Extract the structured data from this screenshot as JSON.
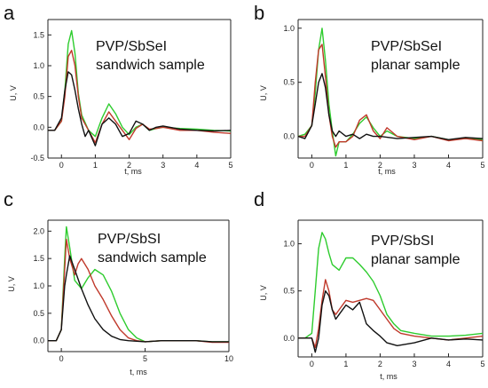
{
  "chart_data": [
    {
      "type": "line",
      "panel": "a",
      "title_line1": "PVP/SbSeI",
      "title_line2": "sandwich sample",
      "xlabel": "t, ms",
      "ylabel": "U, V",
      "xlim": [
        -0.4,
        5
      ],
      "ylim": [
        -0.5,
        1.75
      ],
      "xticks": [
        0,
        1,
        2,
        3,
        4,
        5
      ],
      "yticks": [
        -0.5,
        0.0,
        0.5,
        1.0,
        1.5
      ],
      "ytick_labels": [
        "-0.5",
        "0.0",
        "0.5",
        "1.0",
        "1.5"
      ],
      "series": [
        {
          "color": "#2ecc2e",
          "x": [
            -0.4,
            -0.2,
            0,
            0.1,
            0.2,
            0.3,
            0.4,
            0.5,
            0.6,
            0.8,
            1.0,
            1.2,
            1.4,
            1.6,
            1.8,
            2.0,
            2.2,
            2.4,
            2.6,
            2.8,
            3.0,
            3.5,
            4.0,
            4.5,
            5.0
          ],
          "y": [
            -0.05,
            -0.05,
            0.1,
            0.6,
            1.35,
            1.57,
            1.2,
            0.55,
            0.2,
            -0.05,
            -0.15,
            0.15,
            0.38,
            0.22,
            0.0,
            -0.12,
            0.0,
            0.05,
            -0.05,
            -0.02,
            0.0,
            -0.02,
            -0.03,
            -0.05,
            -0.06
          ]
        },
        {
          "color": "#c0392b",
          "x": [
            -0.4,
            -0.2,
            0,
            0.1,
            0.2,
            0.3,
            0.4,
            0.5,
            0.6,
            0.8,
            1.0,
            1.2,
            1.4,
            1.6,
            1.8,
            2.0,
            2.2,
            2.4,
            2.6,
            2.8,
            3.0,
            3.5,
            4.0,
            4.5,
            5.0
          ],
          "y": [
            -0.05,
            -0.05,
            0.1,
            0.5,
            1.15,
            1.25,
            1.0,
            0.5,
            0.15,
            -0.05,
            -0.25,
            0.05,
            0.25,
            0.1,
            -0.05,
            -0.2,
            -0.02,
            0.05,
            -0.03,
            -0.02,
            0.0,
            -0.05,
            -0.05,
            -0.08,
            -0.1
          ]
        },
        {
          "color": "#111111",
          "x": [
            -0.4,
            -0.2,
            0,
            0.1,
            0.2,
            0.3,
            0.4,
            0.5,
            0.6,
            0.7,
            0.8,
            1.0,
            1.2,
            1.4,
            1.6,
            1.8,
            2.0,
            2.2,
            2.4,
            2.6,
            2.8,
            3.0,
            3.5,
            4.0,
            4.5,
            5.0
          ],
          "y": [
            -0.05,
            -0.05,
            0.15,
            0.6,
            0.9,
            0.85,
            0.6,
            0.3,
            0.05,
            -0.15,
            -0.05,
            -0.3,
            0.05,
            0.15,
            0.05,
            -0.15,
            -0.1,
            0.1,
            0.05,
            -0.05,
            0.0,
            0.02,
            -0.03,
            -0.05,
            -0.06,
            -0.05
          ]
        }
      ]
    },
    {
      "type": "line",
      "panel": "b",
      "title_line1": "PVP/SbSeI",
      "title_line2": "planar sample",
      "xlabel": "t, ms",
      "ylabel": "U, V",
      "xlim": [
        -0.4,
        5
      ],
      "ylim": [
        -0.2,
        1.08
      ],
      "xticks": [
        0,
        1,
        2,
        3,
        4,
        5
      ],
      "yticks": [
        0.0,
        0.5,
        1.0
      ],
      "ytick_labels": [
        "0.0",
        "0.5",
        "1.0"
      ],
      "series": [
        {
          "color": "#2ecc2e",
          "x": [
            -0.4,
            -0.2,
            0,
            0.1,
            0.2,
            0.3,
            0.4,
            0.5,
            0.6,
            0.7,
            0.8,
            1.0,
            1.2,
            1.4,
            1.6,
            1.8,
            2.0,
            2.2,
            2.5,
            3.0,
            3.5,
            4.0,
            4.5,
            5.0
          ],
          "y": [
            0.0,
            0.02,
            0.1,
            0.4,
            0.8,
            1.0,
            0.7,
            0.3,
            0.05,
            -0.18,
            -0.05,
            -0.05,
            0.02,
            0.12,
            0.18,
            0.08,
            0.0,
            0.05,
            0.0,
            -0.02,
            0.0,
            -0.03,
            -0.02,
            -0.03
          ]
        },
        {
          "color": "#c0392b",
          "x": [
            -0.4,
            -0.2,
            0,
            0.1,
            0.2,
            0.3,
            0.4,
            0.5,
            0.6,
            0.7,
            0.8,
            1.0,
            1.2,
            1.4,
            1.6,
            1.8,
            2.0,
            2.2,
            2.5,
            3.0,
            3.5,
            4.0,
            4.5,
            5.0
          ],
          "y": [
            0.0,
            0.0,
            0.1,
            0.5,
            0.8,
            0.85,
            0.55,
            0.2,
            0.0,
            -0.1,
            -0.05,
            -0.05,
            0.0,
            0.15,
            0.2,
            0.05,
            -0.02,
            0.08,
            0.0,
            -0.03,
            0.0,
            -0.04,
            -0.02,
            -0.04
          ]
        },
        {
          "color": "#111111",
          "x": [
            -0.4,
            -0.2,
            0,
            0.1,
            0.2,
            0.3,
            0.4,
            0.5,
            0.6,
            0.7,
            0.8,
            1.0,
            1.2,
            1.4,
            1.6,
            1.8,
            2.0,
            2.5,
            3.0,
            3.5,
            4.0,
            4.5,
            5.0
          ],
          "y": [
            0.0,
            -0.02,
            0.1,
            0.3,
            0.5,
            0.58,
            0.45,
            0.2,
            0.05,
            0.0,
            0.05,
            0.0,
            0.02,
            -0.02,
            0.02,
            0.0,
            0.0,
            -0.02,
            -0.01,
            0.0,
            -0.03,
            -0.01,
            -0.02
          ]
        }
      ]
    },
    {
      "type": "line",
      "panel": "c",
      "title_line1": "PVP/SbSI",
      "title_line2": "sandwich sample",
      "xlabel": "t, ms",
      "ylabel": "U, V",
      "xlim": [
        -0.8,
        10
      ],
      "ylim": [
        -0.2,
        2.2
      ],
      "xticks": [
        0,
        5,
        10
      ],
      "yticks": [
        0.0,
        0.5,
        1.0,
        1.5,
        2.0
      ],
      "ytick_labels": [
        "0.0",
        "0.5",
        "1.0",
        "1.5",
        "2.0"
      ],
      "series": [
        {
          "color": "#2ecc2e",
          "x": [
            -0.8,
            -0.3,
            0,
            0.2,
            0.3,
            0.5,
            0.8,
            1.2,
            1.6,
            2.0,
            2.5,
            3.0,
            3.5,
            4.0,
            4.5,
            5.0,
            6.0,
            7.0,
            8.0,
            9.0,
            10.0
          ],
          "y": [
            0.0,
            0.0,
            0.2,
            1.5,
            2.08,
            1.7,
            1.1,
            0.95,
            1.15,
            1.3,
            1.2,
            0.9,
            0.5,
            0.2,
            0.05,
            -0.02,
            0.0,
            0.0,
            0.0,
            -0.02,
            -0.02
          ]
        },
        {
          "color": "#c0392b",
          "x": [
            -0.8,
            -0.3,
            0,
            0.2,
            0.3,
            0.5,
            0.8,
            1.0,
            1.2,
            1.6,
            2.0,
            2.5,
            3.0,
            3.5,
            4.0,
            4.5,
            5.0,
            6.0,
            7.0,
            8.0,
            9.0,
            10.0
          ],
          "y": [
            0.0,
            0.0,
            0.2,
            1.3,
            1.85,
            1.5,
            1.2,
            1.4,
            1.5,
            1.3,
            1.0,
            0.75,
            0.45,
            0.2,
            0.05,
            0.0,
            -0.02,
            0.0,
            0.0,
            0.0,
            -0.03,
            -0.03
          ]
        },
        {
          "color": "#111111",
          "x": [
            -0.8,
            -0.3,
            0,
            0.2,
            0.3,
            0.5,
            0.8,
            1.2,
            1.6,
            2.0,
            2.5,
            3.0,
            3.5,
            4.0,
            5.0,
            6.0,
            7.0,
            8.0,
            9.0,
            10.0
          ],
          "y": [
            0.0,
            0.0,
            0.2,
            1.0,
            1.2,
            1.55,
            1.3,
            0.95,
            0.65,
            0.4,
            0.2,
            0.08,
            0.02,
            0.0,
            -0.02,
            0.0,
            0.0,
            0.0,
            -0.02,
            -0.02
          ]
        }
      ]
    },
    {
      "type": "line",
      "panel": "d",
      "title_line1": "PVP/SbSI",
      "title_line2": "planar sample",
      "xlabel": "t, ms",
      "ylabel": "U, V",
      "xlim": [
        -0.4,
        5
      ],
      "ylim": [
        -0.2,
        1.25
      ],
      "xticks": [
        0,
        1,
        2,
        3,
        4,
        5
      ],
      "yticks": [
        0.0,
        0.5,
        1.0
      ],
      "ytick_labels": [
        "0.0",
        "0.5",
        "1.0"
      ],
      "series": [
        {
          "color": "#2ecc2e",
          "x": [
            -0.4,
            -0.2,
            0,
            0.1,
            0.2,
            0.3,
            0.4,
            0.5,
            0.6,
            0.8,
            1.0,
            1.2,
            1.4,
            1.6,
            1.8,
            2.0,
            2.2,
            2.4,
            2.6,
            3.0,
            3.5,
            4.0,
            4.5,
            5.0
          ],
          "y": [
            0.0,
            0.0,
            0.05,
            0.5,
            0.95,
            1.12,
            1.05,
            0.9,
            0.78,
            0.72,
            0.85,
            0.85,
            0.78,
            0.7,
            0.6,
            0.45,
            0.25,
            0.15,
            0.08,
            0.05,
            0.02,
            0.02,
            0.03,
            0.05
          ]
        },
        {
          "color": "#c0392b",
          "x": [
            -0.4,
            -0.2,
            0,
            0.1,
            0.2,
            0.3,
            0.4,
            0.5,
            0.6,
            0.7,
            0.8,
            1.0,
            1.2,
            1.4,
            1.6,
            1.8,
            2.0,
            2.2,
            2.4,
            2.6,
            3.0,
            3.5,
            4.0,
            4.5,
            5.0
          ],
          "y": [
            0.0,
            0.0,
            0.0,
            -0.1,
            0.1,
            0.4,
            0.62,
            0.5,
            0.3,
            0.25,
            0.3,
            0.4,
            0.38,
            0.4,
            0.42,
            0.4,
            0.3,
            0.2,
            0.1,
            0.05,
            0.02,
            0.0,
            -0.02,
            0.0,
            0.02
          ]
        },
        {
          "color": "#111111",
          "x": [
            -0.4,
            -0.2,
            0,
            0.1,
            0.2,
            0.3,
            0.4,
            0.5,
            0.6,
            0.7,
            0.8,
            1.0,
            1.2,
            1.4,
            1.6,
            1.8,
            2.0,
            2.2,
            2.5,
            3.0,
            3.5,
            4.0,
            4.5,
            5.0
          ],
          "y": [
            0.0,
            0.0,
            0.0,
            -0.15,
            0.0,
            0.35,
            0.5,
            0.45,
            0.3,
            0.2,
            0.25,
            0.35,
            0.3,
            0.38,
            0.15,
            0.08,
            0.02,
            -0.05,
            -0.08,
            -0.05,
            0.0,
            -0.02,
            -0.01,
            -0.02
          ]
        }
      ]
    }
  ]
}
